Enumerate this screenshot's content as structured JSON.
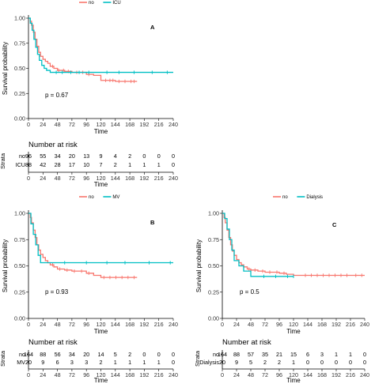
{
  "colors": {
    "group1": "#F8766D",
    "group2": "#00BFC4"
  },
  "chart_data": [
    {
      "id": "A",
      "type": "line",
      "panel_letter": "A",
      "p_value_text": "p = 0.67",
      "xlabel": "Time",
      "ylabel": "Survival probability",
      "xlim": [
        0,
        240
      ],
      "ylim": [
        0,
        1
      ],
      "x_ticks": [
        "0",
        "24",
        "48",
        "72",
        "96",
        "120",
        "144",
        "168",
        "192",
        "216",
        "240"
      ],
      "y_ticks": [
        "0.00",
        "0.25",
        "0.50",
        "0.75",
        "1.00"
      ],
      "grid": false,
      "legend_position": "top",
      "series": [
        {
          "name": "no",
          "color": "#F8766D",
          "x": [
            0,
            3,
            5,
            8,
            11,
            14,
            17,
            20,
            24,
            28,
            32,
            36,
            42,
            48,
            60,
            72,
            96,
            108,
            120,
            144,
            168,
            180
          ],
          "y": [
            1.0,
            0.97,
            0.93,
            0.86,
            0.79,
            0.72,
            0.66,
            0.62,
            0.59,
            0.57,
            0.55,
            0.52,
            0.5,
            0.48,
            0.47,
            0.46,
            0.44,
            0.43,
            0.38,
            0.37,
            0.37,
            0.37
          ],
          "censor_x": [
            40,
            50,
            58,
            66,
            80,
            90,
            100,
            128,
            135,
            140,
            150,
            160,
            170,
            175
          ]
        },
        {
          "name": "ICU",
          "color": "#00BFC4",
          "x": [
            0,
            3,
            6,
            9,
            12,
            15,
            18,
            22,
            26,
            30,
            36,
            240
          ],
          "y": [
            1.0,
            0.95,
            0.88,
            0.79,
            0.71,
            0.64,
            0.58,
            0.53,
            0.5,
            0.48,
            0.46,
            0.46
          ],
          "censor_x": [
            46,
            56,
            70,
            84,
            100,
            130,
            150,
            175,
            205,
            230
          ]
        }
      ],
      "risk_table": {
        "title": "Number at risk",
        "strata_title": "Strata",
        "xlabel": "Time",
        "rows": [
          {
            "label": "no",
            "values": [
              "96",
              "55",
              "34",
              "20",
              "13",
              "9",
              "4",
              "2",
              "0",
              "0",
              "0"
            ]
          },
          {
            "label": "ICU",
            "values": [
              "88",
              "42",
              "28",
              "17",
              "10",
              "7",
              "2",
              "1",
              "1",
              "1",
              "0"
            ]
          }
        ]
      }
    },
    {
      "id": "B",
      "type": "line",
      "panel_letter": "B",
      "p_value_text": "p = 0.93",
      "xlabel": "Time",
      "ylabel": "Survival probability",
      "xlim": [
        0,
        240
      ],
      "ylim": [
        0,
        1
      ],
      "x_ticks": [
        "0",
        "24",
        "48",
        "72",
        "96",
        "120",
        "144",
        "168",
        "192",
        "216",
        "240"
      ],
      "y_ticks": [
        "0.00",
        "0.25",
        "0.50",
        "0.75",
        "1.00"
      ],
      "grid": false,
      "legend_position": "top",
      "series": [
        {
          "name": "no",
          "color": "#F8766D",
          "x": [
            0,
            3,
            5,
            8,
            11,
            14,
            17,
            20,
            24,
            28,
            32,
            36,
            42,
            48,
            60,
            72,
            96,
            108,
            120,
            180
          ],
          "y": [
            1.0,
            0.96,
            0.91,
            0.84,
            0.77,
            0.7,
            0.65,
            0.61,
            0.58,
            0.55,
            0.53,
            0.51,
            0.49,
            0.47,
            0.46,
            0.45,
            0.43,
            0.41,
            0.39,
            0.39
          ],
          "censor_x": [
            40,
            52,
            64,
            76,
            88,
            100,
            125,
            135,
            145,
            155,
            165,
            175
          ]
        },
        {
          "name": "MV",
          "color": "#00BFC4",
          "x": [
            0,
            4,
            8,
            12,
            16,
            20,
            240
          ],
          "y": [
            1.0,
            0.9,
            0.8,
            0.7,
            0.6,
            0.53,
            0.53
          ],
          "censor_x": [
            60,
            96,
            130,
            160,
            200,
            235
          ]
        }
      ],
      "risk_table": {
        "title": "Number at risk",
        "strata_title": "Strata",
        "xlabel": "Time",
        "rows": [
          {
            "label": "no",
            "values": [
              "164",
              "88",
              "56",
              "34",
              "20",
              "14",
              "5",
              "2",
              "0",
              "0",
              "0"
            ]
          },
          {
            "label": "MV",
            "values": [
              "20",
              "9",
              "6",
              "3",
              "3",
              "2",
              "1",
              "1",
              "1",
              "1",
              "0"
            ]
          }
        ]
      }
    },
    {
      "id": "C",
      "type": "line",
      "panel_letter": "C",
      "p_value_text": "p = 0.5",
      "xlabel": "Time",
      "ylabel": "Survival probability",
      "xlim": [
        0,
        240
      ],
      "ylim": [
        0,
        1
      ],
      "x_ticks": [
        "0",
        "24",
        "48",
        "72",
        "96",
        "120",
        "144",
        "168",
        "192",
        "216",
        "240"
      ],
      "y_ticks": [
        "0.00",
        "0.25",
        "0.50",
        "0.75",
        "1.00"
      ],
      "grid": false,
      "legend_position": "top",
      "series": [
        {
          "name": "no",
          "color": "#F8766D",
          "x": [
            0,
            3,
            5,
            8,
            11,
            14,
            17,
            20,
            24,
            28,
            32,
            36,
            42,
            48,
            60,
            72,
            96,
            108,
            120,
            240
          ],
          "y": [
            1.0,
            0.96,
            0.91,
            0.84,
            0.77,
            0.7,
            0.64,
            0.6,
            0.56,
            0.53,
            0.51,
            0.49,
            0.47,
            0.46,
            0.45,
            0.44,
            0.43,
            0.42,
            0.41,
            0.41
          ],
          "censor_x": [
            45,
            55,
            68,
            80,
            92,
            104,
            140,
            150,
            160,
            170,
            180,
            190,
            200,
            210,
            225,
            235
          ]
        },
        {
          "name": "Dialysis",
          "color": "#00BFC4",
          "x": [
            0,
            4,
            8,
            12,
            16,
            20,
            28,
            36,
            48,
            120
          ],
          "y": [
            1.0,
            0.95,
            0.85,
            0.75,
            0.65,
            0.55,
            0.5,
            0.45,
            0.4,
            0.4
          ],
          "censor_x": [
            70,
            90,
            110,
            120
          ]
        }
      ],
      "risk_table": {
        "title": "Number at risk",
        "strata_title": "Strata",
        "xlabel": "Time",
        "rows": [
          {
            "label": "no",
            "values": [
              "164",
              "88",
              "57",
              "35",
              "21",
              "15",
              "6",
              "3",
              "1",
              "1",
              "0"
            ]
          },
          {
            "label": "Dialysis",
            "values": [
              "20",
              "9",
              "5",
              "2",
              "2",
              "1",
              "0",
              "0",
              "0",
              "0",
              "0"
            ]
          }
        ]
      }
    }
  ]
}
